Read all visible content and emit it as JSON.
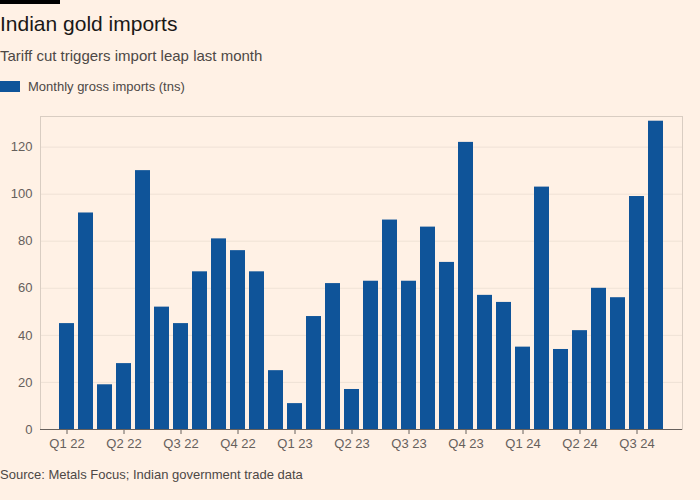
{
  "chart_data": {
    "type": "bar",
    "title": "Indian gold imports",
    "subtitle": "Tariff cut triggers import leap last month",
    "source": "Source: Metals Focus; Indian government trade data",
    "categories": [
      "Q1 22",
      null,
      null,
      "Q2 22",
      null,
      null,
      "Q3 22",
      null,
      null,
      "Q4 22",
      null,
      null,
      "Q1 23",
      null,
      null,
      "Q2 23",
      null,
      null,
      "Q3 23",
      null,
      null,
      "Q4 23",
      null,
      null,
      "Q1 24",
      null,
      null,
      "Q2 24",
      null,
      null,
      "Q3 24",
      null
    ],
    "series": [
      {
        "name": "Monthly gross imports (tns)",
        "color": "#0f5499",
        "values": [
          45,
          92,
          19,
          28,
          110,
          52,
          45,
          67,
          81,
          76,
          67,
          25,
          11,
          48,
          62,
          17,
          63,
          89,
          63,
          86,
          71,
          122,
          57,
          54,
          35,
          103,
          34,
          42,
          60,
          56,
          99,
          131
        ]
      }
    ],
    "ylim": [
      0,
      133
    ],
    "yticks": [
      0,
      20,
      40,
      60,
      80,
      100,
      120
    ],
    "grid": true,
    "legend": "top-left"
  }
}
